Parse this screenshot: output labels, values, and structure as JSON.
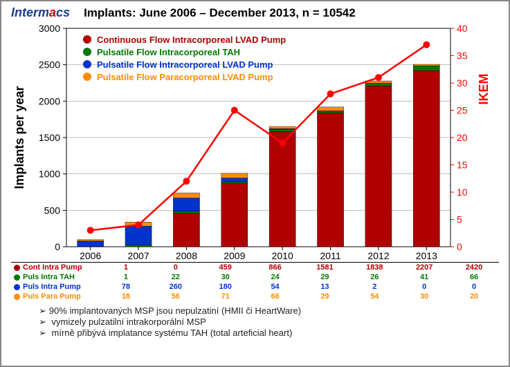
{
  "logo_text_pre": "Interm",
  "logo_text_o": "a",
  "logo_text_post": "cs",
  "title": "Implants:  June 2006 – December 2013, n = 10542",
  "chart": {
    "type": "stacked-bar-with-line",
    "years": [
      "2006",
      "2007",
      "2008",
      "2009",
      "2010",
      "2011",
      "2012",
      "2013"
    ],
    "left_axis": {
      "label": "Implants per year",
      "min": 0,
      "max": 3000,
      "step": 500,
      "color": "#000000",
      "label_fontsize": 18
    },
    "right_axis": {
      "label": "IKEM",
      "min": 0,
      "max": 40,
      "step": 5,
      "color": "#ff0000",
      "label_fontsize": 18
    },
    "series": [
      {
        "key": "cont_intra",
        "label": "Cont Intra Pump",
        "legend": "Continuous Flow Intracorporeal LVAD Pump",
        "color": "#b00000",
        "values": [
          1,
          0,
          459,
          866,
          1581,
          1838,
          2207,
          2420
        ]
      },
      {
        "key": "puls_tah",
        "label": "Puls Intra TAH",
        "legend": "Pulsatile Flow Intracorporeal TAH",
        "color": "#007a00",
        "values": [
          1,
          22,
          30,
          24,
          29,
          26,
          41,
          66
        ]
      },
      {
        "key": "puls_intra",
        "label": "Puls Intra Pump",
        "legend": "Pulsatile Flow Intracorporeal LVAD Pump",
        "color": "#0033cc",
        "values": [
          78,
          260,
          180,
          54,
          13,
          2,
          0,
          0
        ]
      },
      {
        "key": "puls_para",
        "label": "Puls Para Pump",
        "legend": "Pulsatile Flow Paracorporeal LVAD Pump",
        "color": "#ff8c00",
        "values": [
          18,
          56,
          71,
          66,
          29,
          54,
          30,
          20
        ]
      }
    ],
    "line": {
      "label": "IKEM",
      "color": "#ff0000",
      "marker": "circle",
      "line_width": 2.5,
      "values": [
        3,
        4,
        12,
        25,
        19,
        28,
        31,
        37
      ]
    },
    "plot": {
      "bg": "#ffffff",
      "grid_color": "#808080",
      "bar_width": 0.55
    }
  },
  "bullets": [
    "90% implantovaných MSP jsou nepulzatiní (HMII či HeartWare)",
    " vymizely pulzatilní intrakorporální MSP",
    " mírně přibývá implatance systému TAH (total arteficial heart)"
  ],
  "year_row_divider_color": "#000000"
}
